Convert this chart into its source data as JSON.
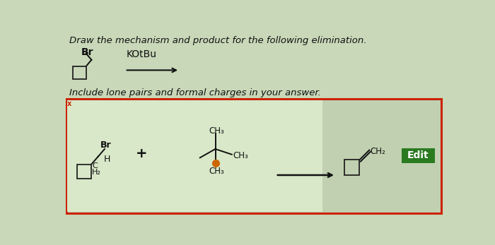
{
  "bg_color": "#c8d8b8",
  "title_text": "Draw the mechanism and product for the following elimination.",
  "subtitle_text": "Include lone pairs and formal charges in your answer.",
  "answer_box_border": "#cc2200",
  "answer_box_bg": "#c0d0b0",
  "inner_box_bg": "#d8e8c8",
  "edit_btn_color": "#2a7a20",
  "edit_btn_text": "Edit",
  "edit_btn_text_color": "#ffffff",
  "white": "#ffffff",
  "black": "#111111",
  "orange_o": "#cc6600"
}
